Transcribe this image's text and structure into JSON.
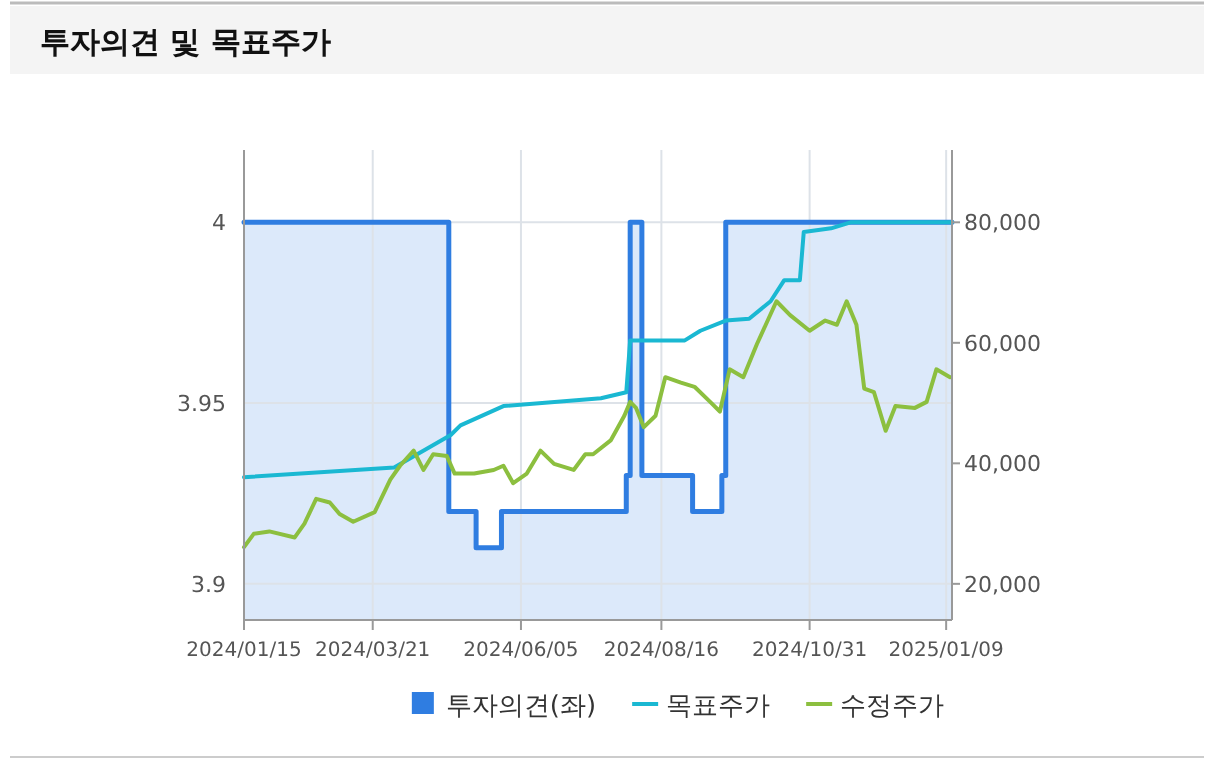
{
  "chart_data": {
    "type": "line",
    "title": "투자의견 및 목표주가",
    "xlim": [
      "2024-01-15",
      "2025-01-12"
    ],
    "xticks": [
      {
        "value": "2024-01-15",
        "label": "2024/01/15"
      },
      {
        "value": "2024-03-21",
        "label": "2024/03/21"
      },
      {
        "value": "2024-06-05",
        "label": "2024/06/05"
      },
      {
        "value": "2024-08-16",
        "label": "2024/08/16"
      },
      {
        "value": "2024-10-31",
        "label": "2024/10/31"
      },
      {
        "value": "2025-01-09",
        "label": "2025/01/09"
      }
    ],
    "ylim": [
      3.89,
      4.02
    ],
    "yticks": [
      3.9,
      3.95,
      4
    ],
    "y2lim": [
      14000,
      92000
    ],
    "y2ticks": [
      {
        "value": 20000,
        "label": "20,000"
      },
      {
        "value": 40000,
        "label": "40,000"
      },
      {
        "value": 60000,
        "label": "60,000"
      },
      {
        "value": 80000,
        "label": "80,000"
      }
    ],
    "grid": true,
    "legend": "bottom",
    "marker": "none",
    "series": [
      {
        "name": "투자의견(좌)",
        "type": "area",
        "color": "#2f7de1",
        "x": [
          "2024-01-15",
          "2024-04-29",
          "2024-04-29",
          "2024-05-13",
          "2024-05-13",
          "2024-05-26",
          "2024-05-26",
          "2024-07-29",
          "2024-07-29",
          "2024-07-31",
          "2024-07-31",
          "2024-08-06",
          "2024-08-06",
          "2024-09-01",
          "2024-09-01",
          "2024-09-16",
          "2024-09-16",
          "2024-09-18",
          "2024-09-18",
          "2025-01-12"
        ],
        "values": [
          4,
          4,
          3.92,
          3.92,
          3.91,
          3.91,
          3.92,
          3.92,
          3.93,
          3.93,
          4,
          4,
          3.93,
          3.93,
          3.92,
          3.92,
          3.93,
          3.93,
          4,
          4
        ]
      },
      {
        "name": "목표주가",
        "axis": "y2",
        "color": "#1ab8d2",
        "x": [
          "2024-01-15",
          "2024-04-01",
          "2024-04-30",
          "2024-05-05",
          "2024-05-27",
          "2024-07-16",
          "2024-07-29",
          "2024-07-31",
          "2024-08-28",
          "2024-09-05",
          "2024-09-18",
          "2024-09-30",
          "2024-10-11",
          "2024-10-18",
          "2024-10-26",
          "2024-10-28",
          "2024-11-11",
          "2024-11-21",
          "2025-01-12"
        ],
        "values": [
          37700,
          39300,
          44700,
          46300,
          49500,
          50800,
          51800,
          60400,
          60400,
          62000,
          63700,
          64000,
          66900,
          70400,
          70400,
          78400,
          79000,
          80000,
          80000
        ]
      },
      {
        "name": "수정주가",
        "axis": "y2",
        "color": "#8cbf3f",
        "x": [
          "2024-01-15",
          "2024-01-20",
          "2024-01-28",
          "2024-02-10",
          "2024-02-15",
          "2024-02-21",
          "2024-02-28",
          "2024-03-04",
          "2024-03-11",
          "2024-03-22",
          "2024-03-30",
          "2024-04-04",
          "2024-04-11",
          "2024-04-16",
          "2024-04-21",
          "2024-04-28",
          "2024-05-02",
          "2024-05-12",
          "2024-05-22",
          "2024-05-27",
          "2024-06-01",
          "2024-06-08",
          "2024-06-15",
          "2024-06-22",
          "2024-07-02",
          "2024-07-08",
          "2024-07-12",
          "2024-07-21",
          "2024-07-28",
          "2024-07-31",
          "2024-08-03",
          "2024-08-07",
          "2024-08-13",
          "2024-08-18",
          "2024-08-26",
          "2024-09-02",
          "2024-09-10",
          "2024-09-15",
          "2024-09-20",
          "2024-09-27",
          "2024-10-04",
          "2024-10-14",
          "2024-10-21",
          "2024-10-31",
          "2024-11-08",
          "2024-11-14",
          "2024-11-19",
          "2024-11-24",
          "2024-11-28",
          "2024-12-03",
          "2024-12-09",
          "2024-12-14",
          "2024-12-24",
          "2024-12-30",
          "2025-01-04",
          "2025-01-11"
        ],
        "values": [
          26100,
          28300,
          28700,
          27700,
          30000,
          34100,
          33500,
          31600,
          30300,
          31900,
          37300,
          39600,
          42100,
          38900,
          41500,
          41200,
          38300,
          38300,
          38900,
          39600,
          36700,
          38300,
          42100,
          39900,
          38900,
          41500,
          41500,
          43800,
          47900,
          50200,
          49200,
          46000,
          47900,
          54300,
          53400,
          52700,
          50200,
          48600,
          55600,
          54300,
          59800,
          66900,
          64600,
          62000,
          63700,
          63000,
          66900,
          63000,
          52400,
          51800,
          45400,
          49500,
          49200,
          50200,
          55600,
          54300
        ]
      }
    ]
  }
}
